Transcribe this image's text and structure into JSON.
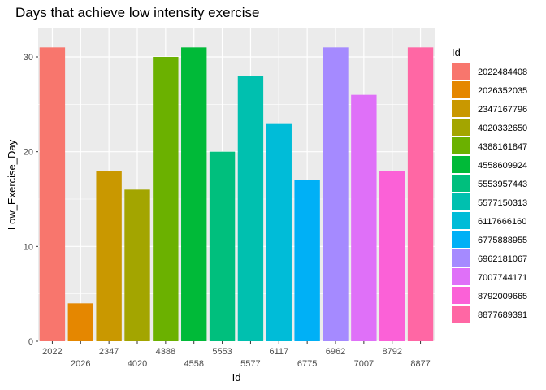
{
  "chart_data": {
    "type": "bar",
    "title": "Days that achieve low intensity exercise",
    "xlabel": "Id",
    "ylabel": "Low_Exercise_Day",
    "ylim": [
      0,
      33
    ],
    "yticks": [
      0,
      10,
      20,
      30
    ],
    "grid": true,
    "legend_title": "Id",
    "legend_position": "right",
    "categories": [
      "2022",
      "2026",
      "2347",
      "4020",
      "4388",
      "4558",
      "5553",
      "5577",
      "6117",
      "6775",
      "6962",
      "7007",
      "8792",
      "8877"
    ],
    "values": [
      31,
      4,
      18,
      16,
      30,
      31,
      20,
      28,
      23,
      17,
      31,
      26,
      18,
      31
    ],
    "legend_entries": [
      "2022484408",
      "2026352035",
      "2347167796",
      "4020332650",
      "4388161847",
      "4558609924",
      "5553957443",
      "5577150313",
      "6117666160",
      "6775888955",
      "6962181067",
      "7007744171",
      "8792009665",
      "8877689391"
    ],
    "colors": [
      "#F8766D",
      "#E58700",
      "#C99800",
      "#A3A500",
      "#6BB100",
      "#00BA38",
      "#00BF7D",
      "#00C0AF",
      "#00BCD8",
      "#00B0F6",
      "#A58AFF",
      "#DF70F8",
      "#FB61D7",
      "#FF67A4"
    ]
  }
}
